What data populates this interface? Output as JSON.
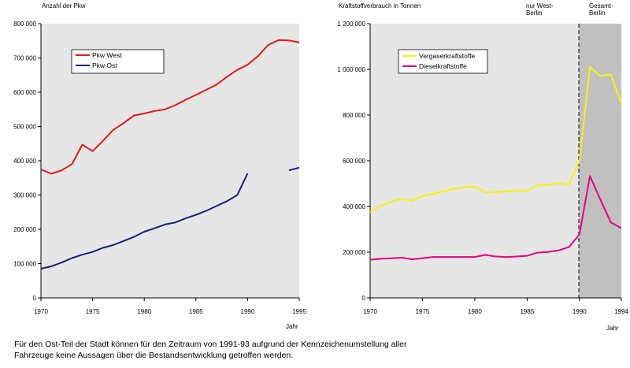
{
  "chart_data": [
    {
      "type": "line",
      "title": "",
      "ylabel": "Anzahl der Pkw",
      "xlabel": "Jahr",
      "xlim": [
        1970,
        1995
      ],
      "ylim": [
        0,
        800000
      ],
      "x_ticks": [
        1970,
        1975,
        1980,
        1985,
        1990,
        1995
      ],
      "y_ticks": [
        0,
        100000,
        200000,
        300000,
        400000,
        500000,
        600000,
        700000,
        800000
      ],
      "x_tick_labels": [
        "1970",
        "1975",
        "1980",
        "1985",
        "1990",
        "1995"
      ],
      "y_tick_labels": [
        "0",
        "100 000",
        "200 000",
        "300 000",
        "400 000",
        "500 000",
        "600 000",
        "700 000",
        "800 000"
      ],
      "legend_position": "top-left",
      "grid": false,
      "series": [
        {
          "name": "Pkw West",
          "color": "#e4181b",
          "points": [
            [
              1970,
              375000
            ],
            [
              1971,
              362000
            ],
            [
              1972,
              372000
            ],
            [
              1973,
              390000
            ],
            [
              1974,
              447000
            ],
            [
              1975,
              428000
            ],
            [
              1976,
              458000
            ],
            [
              1977,
              490000
            ],
            [
              1978,
              510000
            ],
            [
              1979,
              532000
            ],
            [
              1980,
              538000
            ],
            [
              1981,
              545000
            ],
            [
              1982,
              550000
            ],
            [
              1983,
              562000
            ],
            [
              1984,
              578000
            ],
            [
              1985,
              592000
            ],
            [
              1986,
              607000
            ],
            [
              1987,
              622000
            ],
            [
              1988,
              645000
            ],
            [
              1989,
              665000
            ],
            [
              1990,
              680000
            ],
            [
              1991,
              705000
            ],
            [
              1992,
              738000
            ],
            [
              1993,
              752000
            ],
            [
              1994,
              751000
            ],
            [
              1995,
              745000
            ]
          ]
        },
        {
          "name": "Pkw Ost",
          "color": "#1c1c7a",
          "segments": [
            [
              [
                1970,
                85000
              ],
              [
                1971,
                92000
              ],
              [
                1972,
                103000
              ],
              [
                1973,
                116000
              ],
              [
                1974,
                126000
              ],
              [
                1975,
                134000
              ],
              [
                1976,
                146000
              ],
              [
                1977,
                154000
              ],
              [
                1978,
                166000
              ],
              [
                1979,
                178000
              ],
              [
                1980,
                193000
              ],
              [
                1981,
                203000
              ],
              [
                1982,
                214000
              ],
              [
                1983,
                220000
              ],
              [
                1984,
                232000
              ],
              [
                1985,
                242000
              ],
              [
                1986,
                254000
              ],
              [
                1987,
                268000
              ],
              [
                1988,
                282000
              ],
              [
                1989,
                300000
              ],
              [
                1990,
                363000
              ]
            ],
            [
              [
                1994,
                372000
              ],
              [
                1995,
                380000
              ]
            ]
          ]
        }
      ]
    },
    {
      "type": "line",
      "title": "",
      "ylabel": "Kraftstoffverbrauch in Tonnen",
      "xlabel": "Jahr",
      "xlim": [
        1970,
        1994
      ],
      "ylim": [
        0,
        1200000
      ],
      "x_ticks": [
        1970,
        1975,
        1980,
        1985,
        1990,
        1994
      ],
      "y_ticks": [
        0,
        200000,
        400000,
        600000,
        800000,
        1000000,
        1200000
      ],
      "x_tick_labels": [
        "1970",
        "1975",
        "1980",
        "1985",
        "1990",
        "1994"
      ],
      "y_tick_labels": [
        "0",
        "200 000",
        "400 000",
        "600 000",
        "800 000",
        "1 000 000",
        "1 200 000"
      ],
      "legend_position": "top-left",
      "grid": false,
      "regions": [
        {
          "label": "nur West-\nBerlin",
          "x_start": 1970,
          "x_end": 1990,
          "color": "#e6e6e6"
        },
        {
          "label": "Gesamt-\nBerlin",
          "x_start": 1990,
          "x_end": 1994,
          "color": "#c0c0c0"
        }
      ],
      "series": [
        {
          "name": "Vergaserkraftstoffe",
          "color": "#f5f500",
          "points": [
            [
              1970,
              375000
            ],
            [
              1971,
              402000
            ],
            [
              1972,
              420000
            ],
            [
              1973,
              433000
            ],
            [
              1974,
              425000
            ],
            [
              1975,
              446000
            ],
            [
              1976,
              455000
            ],
            [
              1977,
              466000
            ],
            [
              1978,
              477000
            ],
            [
              1979,
              485000
            ],
            [
              1980,
              487000
            ],
            [
              1981,
              462000
            ],
            [
              1982,
              462000
            ],
            [
              1983,
              466000
            ],
            [
              1984,
              470000
            ],
            [
              1985,
              468000
            ],
            [
              1986,
              493000
            ],
            [
              1987,
              493000
            ],
            [
              1988,
              503000
            ],
            [
              1989,
              495000
            ],
            [
              1990,
              600000
            ],
            [
              1991,
              1010000
            ],
            [
              1992,
              970000
            ],
            [
              1993,
              978000
            ],
            [
              1994,
              850000
            ]
          ]
        },
        {
          "name": "Dieselkraftstoffe",
          "color": "#e6007e",
          "points": [
            [
              1970,
              167000
            ],
            [
              1971,
              171000
            ],
            [
              1972,
              173000
            ],
            [
              1973,
              176000
            ],
            [
              1974,
              169000
            ],
            [
              1975,
              173000
            ],
            [
              1976,
              179000
            ],
            [
              1977,
              179000
            ],
            [
              1978,
              179000
            ],
            [
              1979,
              179000
            ],
            [
              1980,
              179000
            ],
            [
              1981,
              188000
            ],
            [
              1982,
              181000
            ],
            [
              1983,
              179000
            ],
            [
              1984,
              181000
            ],
            [
              1985,
              184000
            ],
            [
              1986,
              198000
            ],
            [
              1987,
              201000
            ],
            [
              1988,
              208000
            ],
            [
              1989,
              222000
            ],
            [
              1990,
              278000
            ],
            [
              1991,
              533000
            ],
            [
              1992,
              430000
            ],
            [
              1993,
              330000
            ],
            [
              1994,
              305000
            ]
          ]
        }
      ]
    }
  ],
  "footnote": {
    "line1": "Für den Ost-Teil der Stadt können für den Zeitraum von 1991-93 aufgrund der Kennzeichenumstellung aller",
    "line2": "Fahrzeuge keine Aussagen über die Bestandsentwicklung getroffen werden."
  }
}
